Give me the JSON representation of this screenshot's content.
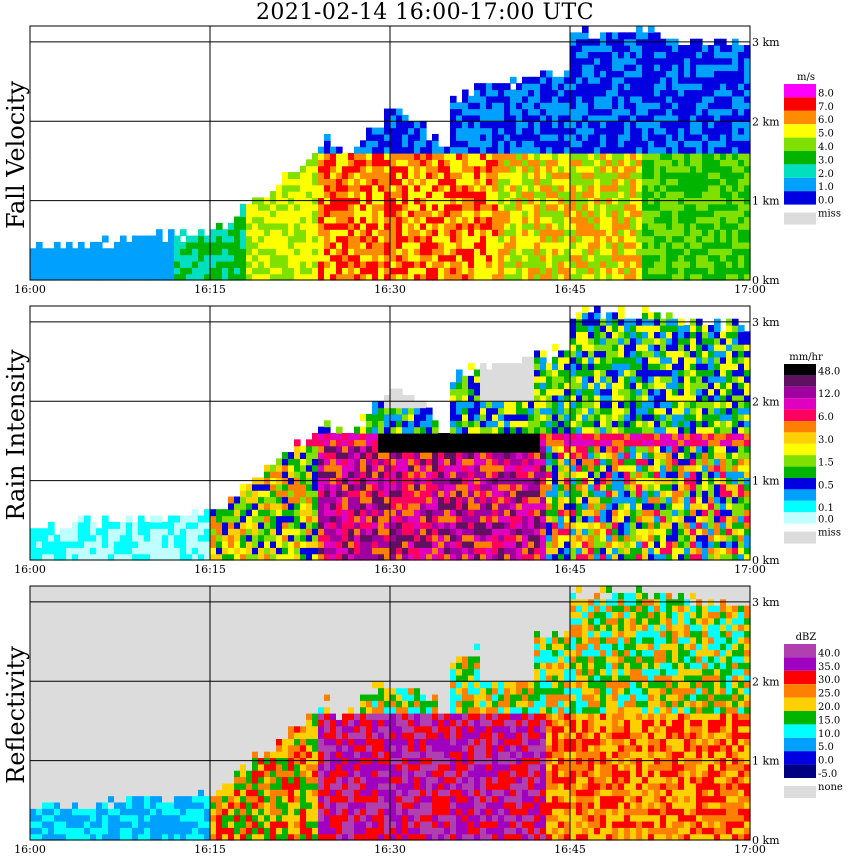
{
  "title": "2021-02-14   16:00-17:00 UTC",
  "x_tick_labels": [
    "16:00",
    "16:15",
    "16:30",
    "16:45",
    "17:00"
  ],
  "height_tick_labels": [
    "0 km",
    "1 km",
    "2 km",
    "3 km"
  ],
  "panels": [
    {
      "label": "Fall Velocity",
      "unit": "m/s",
      "legend": [
        {
          "label": "8.0",
          "color": "#ff00ff"
        },
        {
          "label": "7.0",
          "color": "#ff0000"
        },
        {
          "label": "6.0",
          "color": "#ff8c00"
        },
        {
          "label": "5.0",
          "color": "#ffff00"
        },
        {
          "label": "4.0",
          "color": "#80e000"
        },
        {
          "label": "3.0",
          "color": "#00b400"
        },
        {
          "label": "2.0",
          "color": "#00e0c0"
        },
        {
          "label": "1.0",
          "color": "#00a0ff"
        },
        {
          "label": "0.0",
          "color": "#0000e0"
        }
      ],
      "missing_label": "miss"
    },
    {
      "label": "Rain Intensity",
      "unit": "mm/hr",
      "legend": [
        {
          "label": "48.0",
          "color": "#000000"
        },
        {
          "label": "",
          "color": "#601060"
        },
        {
          "label": "12.0",
          "color": "#a000a0"
        },
        {
          "label": "",
          "color": "#e000c0"
        },
        {
          "label": "6.0",
          "color": "#ff0060"
        },
        {
          "label": "",
          "color": "#ff8000"
        },
        {
          "label": "3.0",
          "color": "#ffd000"
        },
        {
          "label": "",
          "color": "#ffff00"
        },
        {
          "label": "1.5",
          "color": "#80e000"
        },
        {
          "label": "",
          "color": "#00b400"
        },
        {
          "label": "0.5",
          "color": "#0000e0"
        },
        {
          "label": "",
          "color": "#00a0ff"
        },
        {
          "label": "0.1",
          "color": "#00ffff"
        },
        {
          "label": "0.0",
          "color": "#c0ffff"
        }
      ],
      "missing_label": "miss"
    },
    {
      "label": "Reflectivity",
      "unit": "dBZ",
      "legend": [
        {
          "label": "40.0",
          "color": "#b040b0"
        },
        {
          "label": "35.0",
          "color": "#a000c0"
        },
        {
          "label": "30.0",
          "color": "#ff0000"
        },
        {
          "label": "25.0",
          "color": "#ff8000"
        },
        {
          "label": "20.0",
          "color": "#ffd000"
        },
        {
          "label": "15.0",
          "color": "#00b400"
        },
        {
          "label": "10.0",
          "color": "#00ffff"
        },
        {
          "label": "5.0",
          "color": "#00a0ff"
        },
        {
          "label": "0.0",
          "color": "#0000e0"
        },
        {
          "label": "-5.0",
          "color": "#000080"
        }
      ],
      "missing_label": "none"
    }
  ],
  "colors": {
    "missing": "#dcdcdc",
    "grid": "#000000"
  },
  "chart_data": [
    {
      "type": "heatmap",
      "title": "2021-02-14   16:00-17:00 UTC",
      "ylabel": "Fall Velocity",
      "x_range": [
        "16:00",
        "17:00"
      ],
      "y_range_km": [
        0,
        3.2
      ],
      "colorbar_unit": "m/s",
      "colorbar_ticks": [
        0.0,
        1.0,
        2.0,
        3.0,
        4.0,
        5.0,
        6.0,
        7.0,
        8.0
      ],
      "grid": true
    },
    {
      "type": "heatmap",
      "ylabel": "Rain Intensity",
      "x_range": [
        "16:00",
        "17:00"
      ],
      "y_range_km": [
        0,
        3.2
      ],
      "colorbar_unit": "mm/hr",
      "colorbar_ticks": [
        0.0,
        0.1,
        0.5,
        1.5,
        3.0,
        6.0,
        12.0,
        48.0
      ],
      "grid": true
    },
    {
      "type": "heatmap",
      "ylabel": "Reflectivity",
      "x_range": [
        "16:00",
        "17:00"
      ],
      "y_range_km": [
        0,
        3.2
      ],
      "colorbar_unit": "dBZ",
      "colorbar_ticks": [
        -5.0,
        0.0,
        5.0,
        10.0,
        15.0,
        20.0,
        25.0,
        30.0,
        35.0,
        40.0
      ],
      "grid": true
    }
  ]
}
